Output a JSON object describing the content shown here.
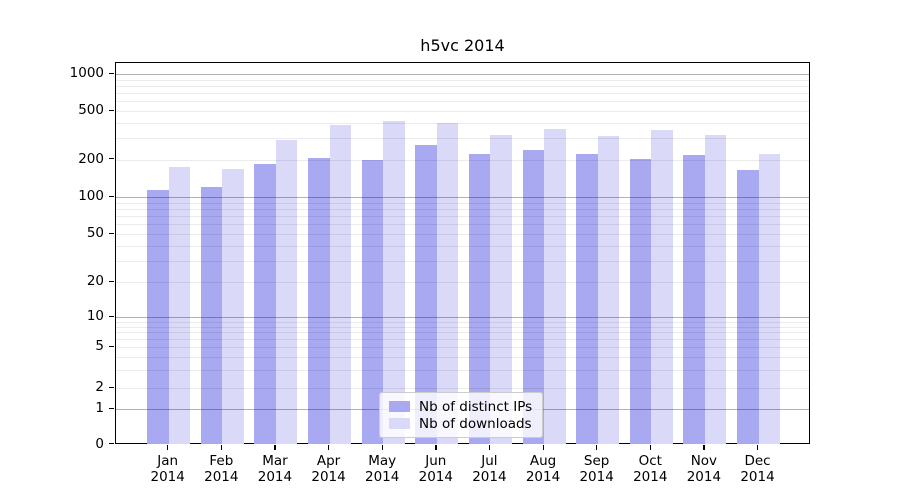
{
  "figure": {
    "title": "h5vc 2014"
  },
  "chart_data": {
    "type": "bar",
    "title": "h5vc 2014",
    "categories": [
      "Jan",
      "Feb",
      "Mar",
      "Apr",
      "May",
      "Jun",
      "Jul",
      "Aug",
      "Sep",
      "Oct",
      "Nov",
      "Dec"
    ],
    "category_year": "2014",
    "series": [
      {
        "name": "Nb of distinct IPs",
        "color": "#a9a9f2",
        "values": [
          113,
          121,
          183,
          207,
          198,
          263,
          222,
          239,
          222,
          202,
          218,
          165
        ]
      },
      {
        "name": "Nb of downloads",
        "color": "#dadaf8",
        "values": [
          174,
          167,
          290,
          385,
          415,
          395,
          318,
          355,
          310,
          350,
          318,
          222
        ]
      }
    ],
    "xlabel": "",
    "ylabel": "",
    "yscale": "symlog",
    "ylim": [
      0,
      1000
    ],
    "yticks": [
      0,
      1,
      2,
      5,
      10,
      20,
      50,
      100,
      200,
      500,
      1000
    ],
    "grid": true,
    "legend_position": "lower-center-inside"
  }
}
